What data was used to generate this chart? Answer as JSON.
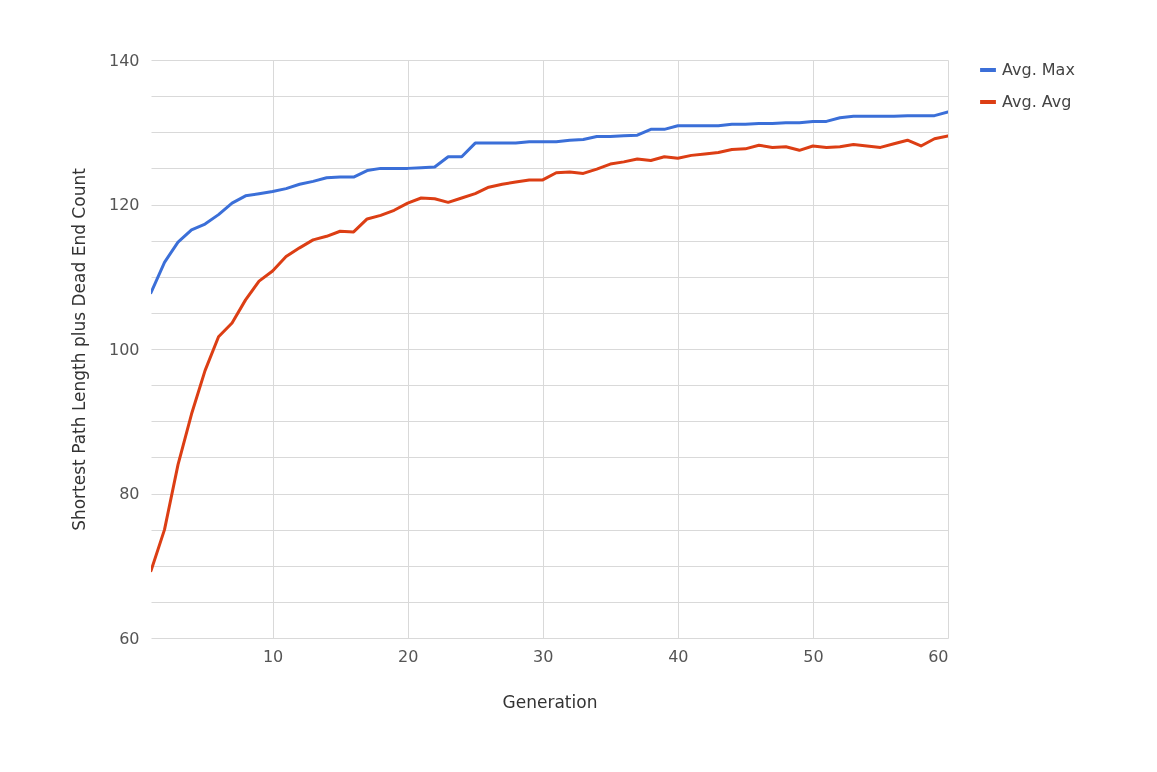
{
  "chart_data": {
    "type": "line",
    "xlabel": "Generation",
    "ylabel": "Shortest Path Length plus Dead End Count",
    "x": [
      1,
      2,
      3,
      4,
      5,
      6,
      7,
      8,
      9,
      10,
      11,
      12,
      13,
      14,
      15,
      16,
      17,
      18,
      19,
      20,
      21,
      22,
      23,
      24,
      25,
      26,
      27,
      28,
      29,
      30,
      31,
      32,
      33,
      34,
      35,
      36,
      37,
      38,
      39,
      40,
      41,
      42,
      43,
      44,
      45,
      46,
      47,
      48,
      49,
      50,
      51,
      52,
      53,
      54,
      55,
      56,
      57,
      58,
      59,
      60
    ],
    "series": [
      {
        "name": "Avg. Max",
        "color": "#3b6fd8",
        "values": [
          107.8,
          112,
          114.8,
          116.5,
          117.3,
          118.6,
          120.2,
          121.2,
          121.5,
          121.8,
          122.2,
          122.8,
          123.2,
          123.7,
          123.8,
          123.8,
          124.7,
          125,
          125,
          125,
          125.1,
          125.2,
          126.6,
          126.6,
          128.5,
          128.5,
          128.5,
          128.5,
          128.7,
          128.7,
          128.7,
          128.9,
          129,
          129.4,
          129.4,
          129.5,
          129.6,
          130.4,
          130.4,
          130.9,
          130.9,
          130.9,
          130.9,
          131.1,
          131.1,
          131.2,
          131.2,
          131.3,
          131.3,
          131.5,
          131.5,
          132,
          132.2,
          132.2,
          132.2,
          132.2,
          132.3,
          132.3,
          132.3,
          132.8
        ]
      },
      {
        "name": "Avg. Avg",
        "color": "#dc3e14",
        "values": [
          69.3,
          75,
          84,
          91,
          97,
          101.7,
          103.6,
          106.8,
          109.4,
          110.8,
          112.8,
          114,
          115.1,
          115.6,
          116.3,
          116.2,
          118,
          118.5,
          119.2,
          120.2,
          120.9,
          120.8,
          120.3,
          120.9,
          121.5,
          122.4,
          122.8,
          123.1,
          123.4,
          123.4,
          124.4,
          124.5,
          124.3,
          124.9,
          125.6,
          125.9,
          126.3,
          126.1,
          126.6,
          126.4,
          126.8,
          127,
          127.2,
          127.6,
          127.7,
          128.2,
          127.9,
          128,
          127.5,
          128.1,
          127.9,
          128,
          128.3,
          128.1,
          127.9,
          128.4,
          128.9,
          128.1,
          129.1,
          129.5
        ]
      }
    ],
    "xlim": [
      1,
      60
    ],
    "xticks": [
      10,
      20,
      30,
      40,
      50,
      60
    ],
    "ylim": [
      60,
      140
    ],
    "yticks": [
      60,
      {
        "value": 65,
        "label": null
      },
      {
        "value": 70,
        "label": null
      },
      {
        "value": 75,
        "label": null
      },
      80,
      {
        "value": 85,
        "label": null
      },
      {
        "value": 90,
        "label": null
      },
      {
        "value": 95,
        "label": null
      },
      100,
      {
        "value": 105,
        "label": null
      },
      {
        "value": 110,
        "label": null
      },
      {
        "value": 115,
        "label": null
      },
      120,
      {
        "value": 125,
        "label": null
      },
      {
        "value": 130,
        "label": null
      },
      {
        "value": 135,
        "label": null
      },
      140
    ],
    "grid": true,
    "legend": "top right",
    "marker": "none",
    "line_style": "solid"
  }
}
